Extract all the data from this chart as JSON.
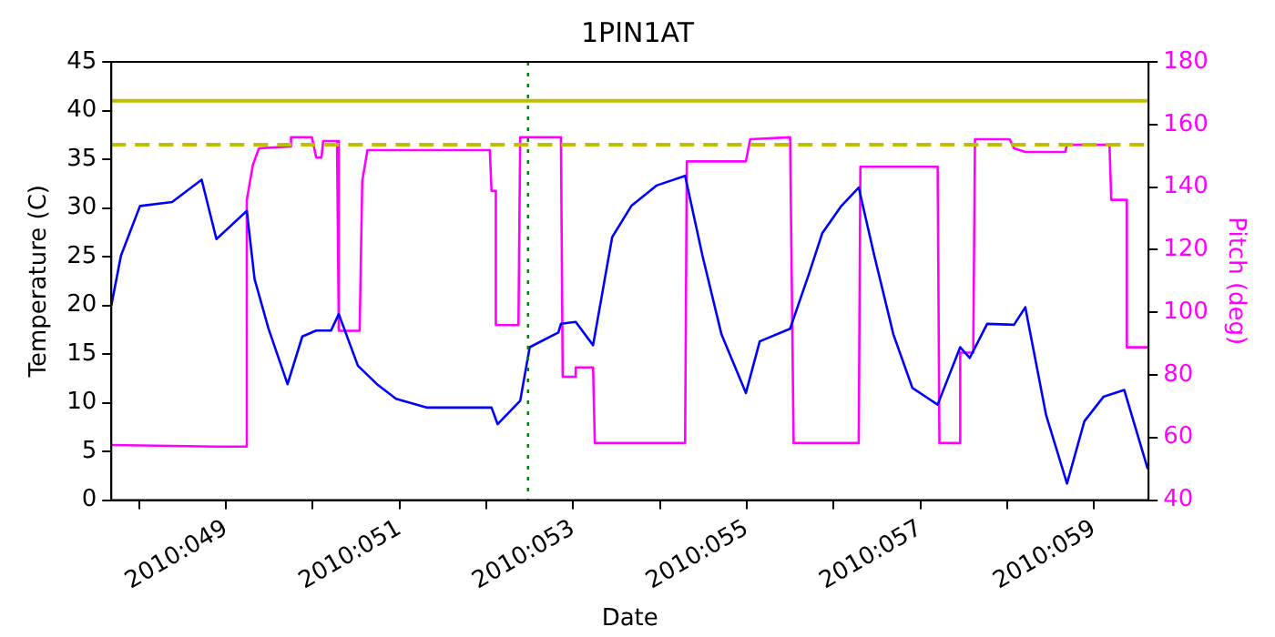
{
  "chart_data": {
    "type": "line",
    "title": "1PIN1AT",
    "xlabel": "Date",
    "ylabel": "Temperature (C)",
    "y2label": "Pitch (deg)",
    "xlim": [
      "2010-02-16T16:19",
      "2010-02-28T15:07"
    ],
    "xticks": [
      {
        "value": "2010-02-17",
        "label": null
      },
      {
        "value": "2010-02-18",
        "label": "2010:049"
      },
      {
        "value": "2010-02-19",
        "label": null
      },
      {
        "value": "2010-02-20",
        "label": "2010:051"
      },
      {
        "value": "2010-02-21",
        "label": null
      },
      {
        "value": "2010-02-22",
        "label": "2010:053"
      },
      {
        "value": "2010-02-23",
        "label": null
      },
      {
        "value": "2010-02-24",
        "label": "2010:055"
      },
      {
        "value": "2010-02-25",
        "label": null
      },
      {
        "value": "2010-02-26",
        "label": "2010:057"
      },
      {
        "value": "2010-02-27",
        "label": null
      },
      {
        "value": "2010-02-28",
        "label": "2010:059"
      }
    ],
    "ylim": [
      0,
      45
    ],
    "yticks": [
      0,
      5,
      10,
      15,
      20,
      25,
      30,
      35,
      40,
      45
    ],
    "y2lim": [
      40,
      180
    ],
    "y2ticks": [
      40,
      60,
      80,
      100,
      120,
      140,
      160,
      180
    ],
    "grid": false,
    "legend": false,
    "marker": "none",
    "line_style": "solid",
    "series": [
      {
        "color": "#0000ff",
        "x": [
          "2010-02-16T16:19",
          "2010-02-16T18:58",
          "2010-02-17T00:14",
          "2010-02-17T09:07",
          "2010-02-17T17:17",
          "2010-02-17T21:22",
          "2010-02-18T05:46",
          "2010-02-18T07:55",
          "2010-02-18T11:46",
          "2010-02-18T17:02",
          "2010-02-18T21:07",
          "2010-02-19T00:58",
          "2010-02-19T05:02",
          "2010-02-19T07:12",
          "2010-02-19T12:29",
          "2010-02-19T17:46",
          "2010-02-19T23:02",
          "2010-02-20T07:26",
          "2010-02-20T21:50",
          "2010-02-21T01:26",
          "2010-02-21T03:07",
          "2010-02-21T09:22",
          "2010-02-21T12:00",
          "2010-02-21T19:55",
          "2010-02-21T20:38",
          "2010-02-22T00:43",
          "2010-02-22T05:31",
          "2010-02-22T10:48",
          "2010-02-22T16:05",
          "2010-02-22T23:02",
          "2010-02-23T06:58",
          "2010-02-23T11:46",
          "2010-02-23T17:02",
          "2010-02-23T23:46",
          "2010-02-24T03:36",
          "2010-02-24T12:00",
          "2010-02-24T17:17",
          "2010-02-24T20:53",
          "2010-02-25T02:10",
          "2010-02-25T06:58",
          "2010-02-25T11:17",
          "2010-02-25T16:34",
          "2010-02-25T21:50",
          "2010-02-26T04:48",
          "2010-02-26T11:02",
          "2010-02-26T13:41",
          "2010-02-26T18:29",
          "2010-02-27T01:55",
          "2010-02-27T05:02",
          "2010-02-27T10:48",
          "2010-02-27T16:34",
          "2010-02-27T21:22",
          "2010-02-28T02:38",
          "2010-02-28T08:24",
          "2010-02-28T14:53"
        ],
        "values": [
          20.0,
          25.1,
          30.2,
          30.6,
          32.9,
          26.8,
          29.7,
          22.7,
          17.6,
          11.9,
          16.8,
          17.4,
          17.4,
          19.1,
          13.8,
          11.9,
          10.4,
          9.5,
          9.5,
          9.5,
          7.8,
          10.2,
          15.7,
          17.2,
          18.1,
          18.3,
          15.9,
          27.0,
          30.2,
          32.3,
          33.3,
          25.1,
          17.0,
          11.0,
          16.3,
          17.6,
          23.3,
          27.4,
          30.2,
          32.1,
          25.1,
          17.0,
          11.5,
          9.8,
          15.7,
          14.6,
          18.1,
          18.0,
          19.8,
          8.7,
          1.7,
          8.1,
          10.6,
          11.3,
          3.2
        ]
      },
      {
        "color": "#ff00ff",
        "axis": "y2",
        "x": [
          "2010-02-16T16:19",
          "2010-02-17T21:22",
          "2010-02-18T05:46",
          "2010-02-18T05:46",
          "2010-02-18T07:26",
          "2010-02-18T09:07",
          "2010-02-18T18:00",
          "2010-02-18T18:00",
          "2010-02-18T23:46",
          "2010-02-19T00:58",
          "2010-02-19T02:24",
          "2010-02-19T02:53",
          "2010-02-19T06:43",
          "2010-02-19T07:12",
          "2010-02-19T12:58",
          "2010-02-19T13:41",
          "2010-02-19T15:07",
          "2010-02-21T00:58",
          "2010-02-21T01:26",
          "2010-02-21T02:38",
          "2010-02-21T02:38",
          "2010-02-21T08:53",
          "2010-02-21T09:22",
          "2010-02-21T20:38",
          "2010-02-21T21:07",
          "2010-02-22T00:43",
          "2010-02-22T00:43",
          "2010-02-22T05:31",
          "2010-02-22T06:00",
          "2010-02-23T06:58",
          "2010-02-23T07:26",
          "2010-02-23T23:46",
          "2010-02-24T00:58",
          "2010-02-24T12:00",
          "2010-02-24T12:58",
          "2010-02-25T06:58",
          "2010-02-25T07:26",
          "2010-02-26T04:48",
          "2010-02-26T05:17",
          "2010-02-26T11:02",
          "2010-02-26T11:02",
          "2010-02-26T14:38",
          "2010-02-26T15:07",
          "2010-02-27T00:43",
          "2010-02-27T01:55",
          "2010-02-27T05:02",
          "2010-02-27T16:05",
          "2010-02-27T16:34",
          "2010-02-28T04:19",
          "2010-02-28T04:48",
          "2010-02-28T09:07",
          "2010-02-28T09:07",
          "2010-02-28T14:53"
        ],
        "values": [
          57.6,
          57.1,
          57.1,
          135.9,
          147,
          152.4,
          153,
          155.9,
          155.9,
          149.4,
          149.4,
          154.7,
          154.7,
          94.1,
          94.1,
          141.8,
          151.8,
          151.8,
          138.8,
          138.8,
          95.9,
          95.9,
          155.9,
          155.9,
          79.4,
          79.4,
          82.4,
          82.4,
          58.2,
          58.2,
          148.2,
          148.2,
          155.3,
          155.9,
          58.2,
          58.2,
          146.5,
          146.5,
          58.2,
          58.2,
          87.1,
          87.1,
          155.3,
          155.3,
          152.4,
          151.2,
          151.2,
          153.5,
          153.5,
          135.9,
          135.9,
          88.8,
          88.8
        ]
      }
    ],
    "ref_lines": [
      {
        "axis": "y",
        "value": 41,
        "color": "#bfbf00",
        "line_style": "solid"
      },
      {
        "axis": "y",
        "value": 36.5,
        "color": "#bfbf00",
        "line_style": "dashed"
      },
      {
        "axis": "x",
        "value": "2010-02-21T11:31",
        "color": "#008000",
        "line_style": "dotted"
      }
    ]
  }
}
